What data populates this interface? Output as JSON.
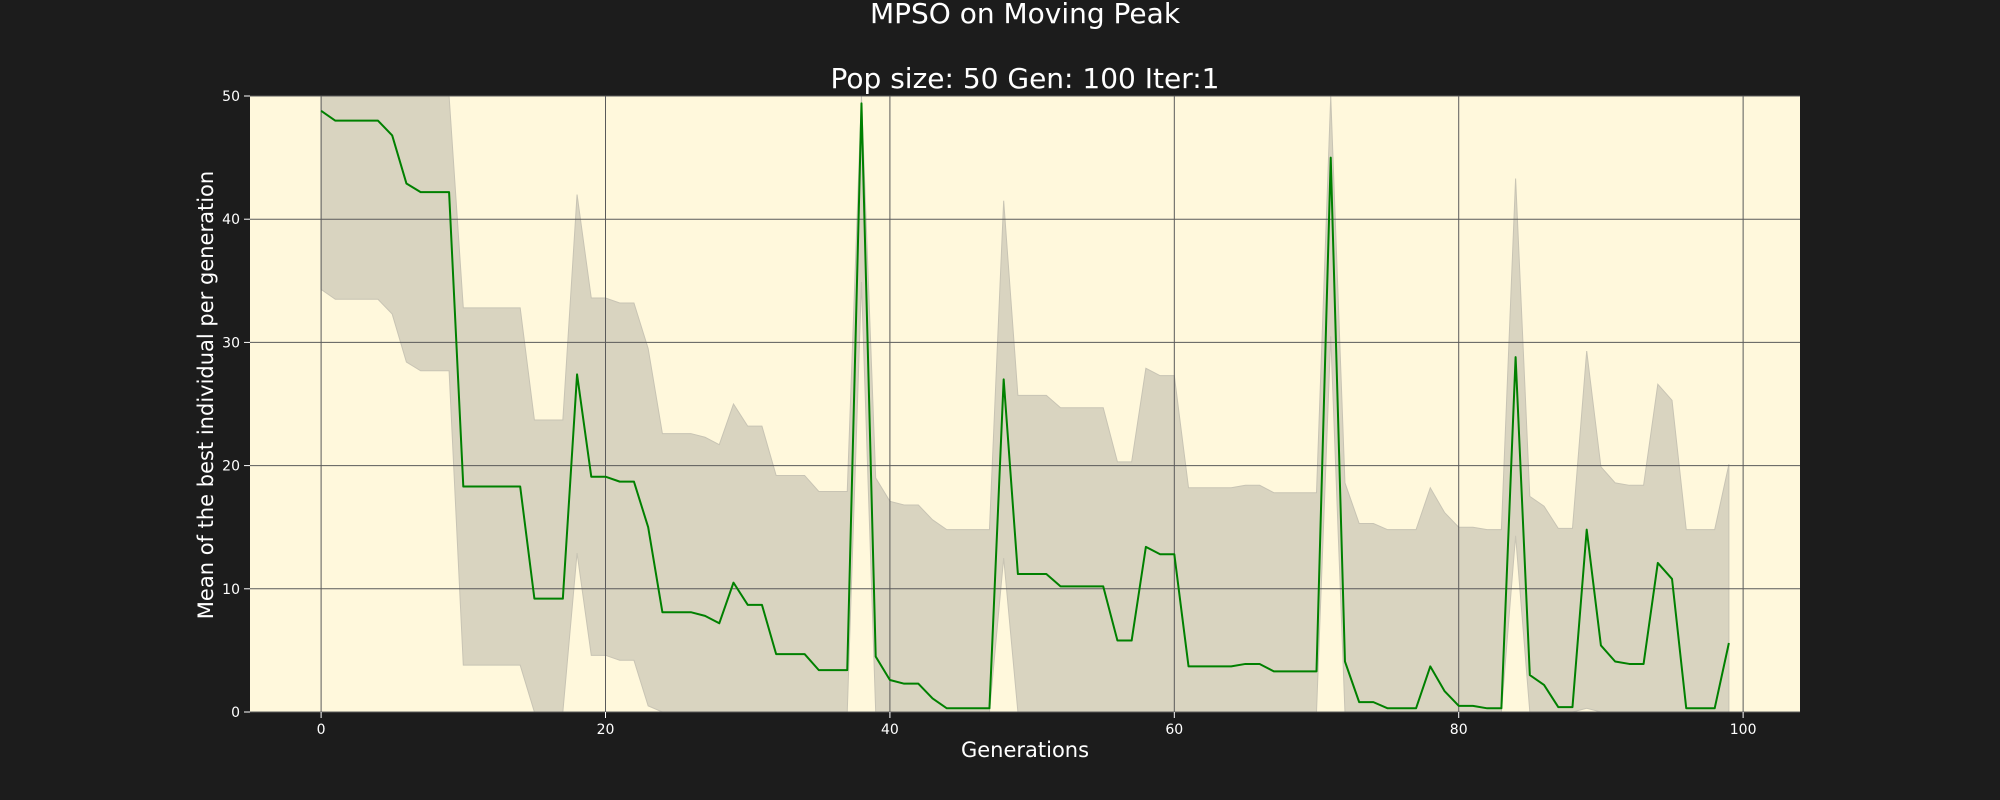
{
  "chart_data": {
    "type": "line",
    "title": "MPSO on Moving Peak",
    "subtitle": "Pop size: 50  Gen: 100  Iter:1",
    "xlabel": "Generations",
    "ylabel": "Mean of the best individual per generation",
    "xlim": [
      -5,
      104
    ],
    "ylim": [
      0,
      50
    ],
    "xticks": [
      0,
      20,
      40,
      60,
      80,
      100
    ],
    "yticks": [
      0,
      10,
      20,
      30,
      40,
      50
    ],
    "grid": true,
    "colors": {
      "background": "#1c1c1c",
      "plot_area": "#fff8dc",
      "line": "#008000",
      "band": "#d9d4c0",
      "band_edge": "#c8c4b4",
      "grid": "#5a5a5a"
    },
    "x": [
      0,
      1,
      2,
      3,
      4,
      5,
      6,
      7,
      8,
      9,
      10,
      11,
      12,
      13,
      14,
      15,
      16,
      17,
      18,
      19,
      20,
      21,
      22,
      23,
      24,
      25,
      26,
      27,
      28,
      29,
      30,
      31,
      32,
      33,
      34,
      35,
      36,
      37,
      38,
      39,
      40,
      41,
      42,
      43,
      44,
      45,
      46,
      47,
      48,
      49,
      50,
      51,
      52,
      53,
      54,
      55,
      56,
      57,
      58,
      59,
      60,
      61,
      62,
      63,
      64,
      65,
      66,
      67,
      68,
      69,
      70,
      71,
      72,
      73,
      74,
      75,
      76,
      77,
      78,
      79,
      80,
      81,
      82,
      83,
      84,
      85,
      86,
      87,
      88,
      89,
      90,
      91,
      92,
      93,
      94,
      95,
      96,
      97,
      98,
      99
    ],
    "series": [
      {
        "mean": [
          48.8,
          48.0,
          48.0,
          48.0,
          48.0,
          46.8,
          42.9,
          42.2,
          42.2,
          42.2,
          18.3,
          18.3,
          18.3,
          18.3,
          18.3,
          9.2,
          9.2,
          9.2,
          27.4,
          19.1,
          19.1,
          18.7,
          18.7,
          15.0,
          8.1,
          8.1,
          8.1,
          7.8,
          7.2,
          10.5,
          8.7,
          8.7,
          4.7,
          4.7,
          4.7,
          3.4,
          3.4,
          3.4,
          49.4,
          4.5,
          2.6,
          2.3,
          2.3,
          1.1,
          0.3,
          0.3,
          0.3,
          0.3,
          27.0,
          11.2,
          11.2,
          11.2,
          10.2,
          10.2,
          10.2,
          10.2,
          5.8,
          5.8,
          13.4,
          12.8,
          12.8,
          3.7,
          3.7,
          3.7,
          3.7,
          3.9,
          3.9,
          3.3,
          3.3,
          3.3,
          3.3,
          45.0,
          4.1,
          0.8,
          0.8,
          0.3,
          0.3,
          0.3,
          3.7,
          1.7,
          0.5,
          0.5,
          0.3,
          0.3,
          28.8,
          3.0,
          2.2,
          0.4,
          0.4,
          14.8,
          5.4,
          4.1,
          3.9,
          3.9,
          12.1,
          10.8,
          0.3,
          0.3,
          0.3,
          5.6
        ],
        "upper": [
          50.0,
          50.0,
          50.0,
          50.0,
          50.0,
          50.0,
          50.0,
          50.0,
          50.0,
          50.0,
          32.8,
          32.8,
          32.8,
          32.8,
          32.8,
          23.7,
          23.7,
          23.7,
          42.0,
          33.6,
          33.6,
          33.2,
          33.2,
          29.5,
          22.6,
          22.6,
          22.6,
          22.3,
          21.7,
          25.0,
          23.2,
          23.2,
          19.2,
          19.2,
          19.2,
          17.9,
          17.9,
          17.9,
          50.0,
          19.0,
          17.1,
          16.8,
          16.8,
          15.6,
          14.8,
          14.8,
          14.8,
          14.8,
          41.5,
          25.7,
          25.7,
          25.7,
          24.7,
          24.7,
          24.7,
          24.7,
          20.3,
          20.3,
          27.9,
          27.3,
          27.3,
          18.2,
          18.2,
          18.2,
          18.2,
          18.4,
          18.4,
          17.8,
          17.8,
          17.8,
          17.8,
          50.0,
          18.6,
          15.3,
          15.3,
          14.8,
          14.8,
          14.8,
          18.2,
          16.2,
          15.0,
          15.0,
          14.8,
          14.8,
          43.3,
          17.5,
          16.7,
          14.9,
          14.9,
          29.3,
          19.9,
          18.6,
          18.4,
          18.4,
          26.6,
          25.3,
          14.8,
          14.8,
          14.8,
          20.1
        ],
        "lower": [
          34.3,
          33.5,
          33.5,
          33.5,
          33.5,
          32.3,
          28.4,
          27.7,
          27.7,
          27.7,
          3.8,
          3.8,
          3.8,
          3.8,
          3.8,
          0,
          0,
          0,
          12.9,
          4.6,
          4.6,
          4.2,
          4.2,
          0.5,
          0,
          0,
          0,
          0,
          0,
          0,
          0,
          0,
          0,
          0,
          0,
          0,
          0,
          0,
          34.9,
          0,
          0,
          0,
          0,
          0,
          0,
          0,
          0,
          0,
          12.5,
          0,
          0,
          0,
          0,
          0,
          0,
          0,
          0,
          0,
          0,
          0,
          0,
          0,
          0,
          0,
          0,
          0,
          0,
          0,
          0,
          0,
          0,
          30.5,
          0,
          0,
          0,
          0,
          0,
          0,
          0,
          0,
          0,
          0,
          0,
          0,
          14.3,
          0,
          0,
          0,
          0,
          0.3,
          0,
          0,
          0,
          0,
          0,
          0,
          0,
          0,
          0,
          0
        ]
      }
    ]
  }
}
